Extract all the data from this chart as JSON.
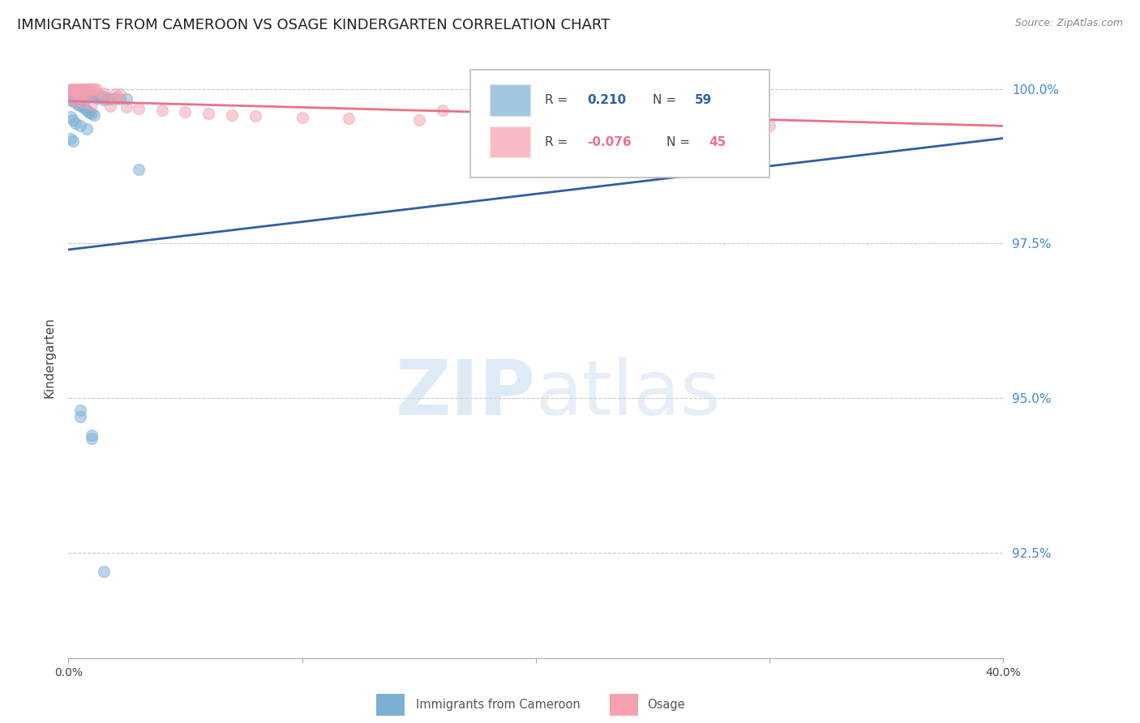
{
  "title": "IMMIGRANTS FROM CAMEROON VS OSAGE KINDERGARTEN CORRELATION CHART",
  "source": "Source: ZipAtlas.com",
  "ylabel": "Kindergarten",
  "watermark_zip": "ZIP",
  "watermark_atlas": "atlas",
  "legend_blue_r_val": "0.210",
  "legend_blue_n_val": "59",
  "legend_pink_r_val": "-0.076",
  "legend_pink_n_val": "45",
  "xlim": [
    0.0,
    0.4
  ],
  "ylim": [
    0.908,
    1.005
  ],
  "y_ticks": [
    0.925,
    0.95,
    0.975,
    1.0
  ],
  "y_tick_labels": [
    "92.5%",
    "95.0%",
    "97.5%",
    "100.0%"
  ],
  "x_ticks": [
    0.0,
    0.1,
    0.2,
    0.3,
    0.4
  ],
  "x_tick_labels": [
    "0.0%",
    "",
    "",
    "",
    "40.0%"
  ],
  "blue_color": "#7bafd4",
  "pink_color": "#f4a0b0",
  "blue_line_color": "#2e5fa3",
  "pink_line_color": "#e8728a",
  "blue_scatter": [
    [
      0.001,
      0.9995
    ],
    [
      0.001,
      0.999
    ],
    [
      0.002,
      0.9998
    ],
    [
      0.002,
      0.9995
    ],
    [
      0.002,
      0.9992
    ],
    [
      0.003,
      0.9997
    ],
    [
      0.003,
      0.9994
    ],
    [
      0.003,
      0.999
    ],
    [
      0.004,
      0.9996
    ],
    [
      0.004,
      0.9993
    ],
    [
      0.005,
      0.9995
    ],
    [
      0.005,
      0.9988
    ],
    [
      0.006,
      0.9994
    ],
    [
      0.006,
      0.999
    ],
    [
      0.007,
      0.9993
    ],
    [
      0.007,
      0.9988
    ],
    [
      0.008,
      0.9992
    ],
    [
      0.008,
      0.9985
    ],
    [
      0.009,
      0.999
    ],
    [
      0.009,
      0.9987
    ],
    [
      0.01,
      0.9991
    ],
    [
      0.01,
      0.9988
    ],
    [
      0.011,
      0.9989
    ],
    [
      0.012,
      0.9988
    ],
    [
      0.012,
      0.9985
    ],
    [
      0.013,
      0.9987
    ],
    [
      0.014,
      0.9986
    ],
    [
      0.015,
      0.9988
    ],
    [
      0.015,
      0.9982
    ],
    [
      0.016,
      0.9985
    ],
    [
      0.017,
      0.9984
    ],
    [
      0.018,
      0.9983
    ],
    [
      0.02,
      0.9985
    ],
    [
      0.022,
      0.9984
    ],
    [
      0.025,
      0.9983
    ],
    [
      0.001,
      0.9982
    ],
    [
      0.002,
      0.998
    ],
    [
      0.003,
      0.9978
    ],
    [
      0.004,
      0.9975
    ],
    [
      0.005,
      0.9973
    ],
    [
      0.006,
      0.997
    ],
    [
      0.007,
      0.9968
    ],
    [
      0.008,
      0.9965
    ],
    [
      0.009,
      0.9962
    ],
    [
      0.01,
      0.996
    ],
    [
      0.011,
      0.9958
    ],
    [
      0.001,
      0.9955
    ],
    [
      0.002,
      0.995
    ],
    [
      0.003,
      0.9945
    ],
    [
      0.005,
      0.994
    ],
    [
      0.008,
      0.9935
    ],
    [
      0.001,
      0.992
    ],
    [
      0.002,
      0.9915
    ],
    [
      0.005,
      0.948
    ],
    [
      0.005,
      0.947
    ],
    [
      0.01,
      0.944
    ],
    [
      0.01,
      0.9435
    ],
    [
      0.015,
      0.922
    ],
    [
      0.03,
      0.987
    ]
  ],
  "pink_scatter": [
    [
      0.001,
      1.0
    ],
    [
      0.002,
      1.0
    ],
    [
      0.003,
      1.0
    ],
    [
      0.004,
      1.0
    ],
    [
      0.005,
      1.0
    ],
    [
      0.006,
      1.0
    ],
    [
      0.007,
      1.0
    ],
    [
      0.008,
      1.0
    ],
    [
      0.009,
      1.0
    ],
    [
      0.01,
      1.0
    ],
    [
      0.011,
      1.0
    ],
    [
      0.012,
      1.0
    ],
    [
      0.001,
      0.9998
    ],
    [
      0.003,
      0.9997
    ],
    [
      0.005,
      0.9996
    ],
    [
      0.008,
      0.9995
    ],
    [
      0.012,
      0.9994
    ],
    [
      0.015,
      0.9993
    ],
    [
      0.002,
      0.999
    ],
    [
      0.005,
      0.9988
    ],
    [
      0.008,
      0.9987
    ],
    [
      0.015,
      0.9985
    ],
    [
      0.02,
      0.9983
    ],
    [
      0.003,
      0.998
    ],
    [
      0.006,
      0.9978
    ],
    [
      0.01,
      0.9975
    ],
    [
      0.018,
      0.9972
    ],
    [
      0.025,
      0.997
    ],
    [
      0.03,
      0.9968
    ],
    [
      0.04,
      0.9965
    ],
    [
      0.05,
      0.9963
    ],
    [
      0.06,
      0.996
    ],
    [
      0.07,
      0.9958
    ],
    [
      0.08,
      0.9956
    ],
    [
      0.1,
      0.9954
    ],
    [
      0.12,
      0.9952
    ],
    [
      0.15,
      0.995
    ],
    [
      0.2,
      0.9948
    ],
    [
      0.25,
      0.9945
    ],
    [
      0.28,
      0.9942
    ],
    [
      0.3,
      0.994
    ],
    [
      0.02,
      0.9992
    ],
    [
      0.022,
      0.9991
    ],
    [
      0.16,
      0.9965
    ],
    [
      0.18,
      0.996
    ]
  ],
  "background_color": "#ffffff",
  "grid_color": "#bbbbbb",
  "right_label_color": "#4488cc",
  "title_fontsize": 13,
  "axis_label_fontsize": 11
}
